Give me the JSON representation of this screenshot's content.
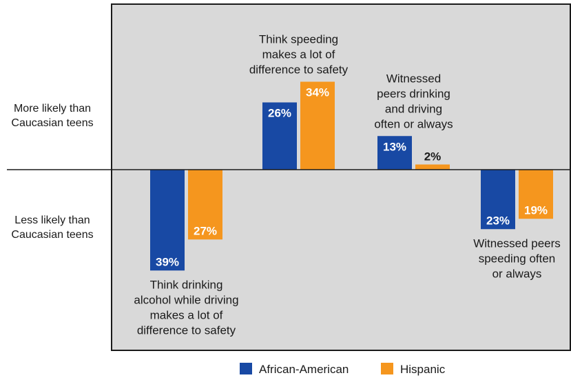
{
  "chart_data": {
    "type": "bar",
    "orientation": "diverging",
    "baseline_value": 0,
    "ylim": [
      -40,
      40
    ],
    "y_side_labels": {
      "positive": [
        "More likely than",
        "Caucasian teens"
      ],
      "negative": [
        "Less likely than",
        "Caucasian teens"
      ]
    },
    "series": [
      {
        "name": "African-American",
        "color": "#1849a4"
      },
      {
        "name": "Hispanic",
        "color": "#f5961e"
      }
    ],
    "groups": [
      {
        "label_lines": [
          "Think drinking",
          "alcohol while driving",
          "makes a lot of",
          "difference to safety"
        ],
        "label_position": "below",
        "values": [
          -39,
          -27
        ],
        "display": [
          "39%",
          "27%"
        ]
      },
      {
        "label_lines": [
          "Think speeding",
          "makes a lot of",
          "difference to safety"
        ],
        "label_position": "above",
        "values": [
          26,
          34
        ],
        "display": [
          "26%",
          "34%"
        ]
      },
      {
        "label_lines": [
          "Witnessed",
          "peers drinking",
          "and driving",
          "often or always"
        ],
        "label_position": "above",
        "values": [
          13,
          2
        ],
        "display": [
          "13%",
          "2%"
        ]
      },
      {
        "label_lines": [
          "Witnessed peers",
          "speeding often",
          "or always"
        ],
        "label_position": "below",
        "values": [
          -23,
          -19
        ],
        "display": [
          "23%",
          "19%"
        ]
      }
    ],
    "legend_position": "bottom-center",
    "grid": false,
    "plot_background": "#d9d9d9"
  }
}
